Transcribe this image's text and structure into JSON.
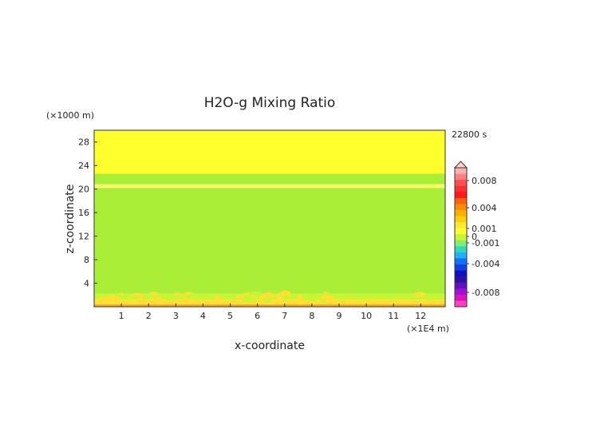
{
  "chart_data": {
    "type": "heatmap",
    "title": "H2O-g Mixing Ratio",
    "xlabel": "x-coordinate",
    "ylabel": "z-coordinate",
    "x_unit": "(×1E4 m)",
    "y_unit": "(×1000 m)",
    "time_label": "22800 s",
    "xlim": [
      0,
      12.9
    ],
    "ylim": [
      0,
      30
    ],
    "x_ticks": [
      1,
      2,
      3,
      4,
      5,
      6,
      7,
      8,
      9,
      10,
      11,
      12
    ],
    "y_ticks": [
      4,
      8,
      12,
      16,
      20,
      24,
      28
    ],
    "layers": [
      {
        "z_from": 0.0,
        "z_to": 0.4,
        "color": "#f5a623"
      },
      {
        "z_from": 0.4,
        "z_to": 1.2,
        "color": "#ffe033"
      },
      {
        "z_from": 1.2,
        "z_to": 2.2,
        "color": "#c8f532"
      },
      {
        "z_from": 2.2,
        "z_to": 20.2,
        "color": "#aaee38"
      },
      {
        "z_from": 20.2,
        "z_to": 20.8,
        "color": "#ffff66"
      },
      {
        "z_from": 20.8,
        "z_to": 22.6,
        "color": "#aaee38"
      },
      {
        "z_from": 22.6,
        "z_to": 30.0,
        "color": "#ffff2e"
      }
    ],
    "colorbar": {
      "labels": [
        "0.008",
        "0.004",
        "0.001",
        "0",
        "-0.001",
        "-0.004",
        "-0.008"
      ],
      "label_values": [
        0.008,
        0.004,
        0.001,
        0,
        -0.001,
        -0.004,
        -0.008
      ],
      "colors_top_to_bottom": [
        "#ffb0b0",
        "#ff8080",
        "#ff5050",
        "#ff3030",
        "#ff1818",
        "#ff6010",
        "#ff8c00",
        "#ffb000",
        "#ffd000",
        "#ffe830",
        "#ffff30",
        "#c8f532",
        "#80ee70",
        "#30d8c0",
        "#20b0ff",
        "#1070ff",
        "#1040e0",
        "#1010c0",
        "#3010a0",
        "#6010c0",
        "#a010d0",
        "#e010c0",
        "#ff40c0"
      ]
    }
  }
}
